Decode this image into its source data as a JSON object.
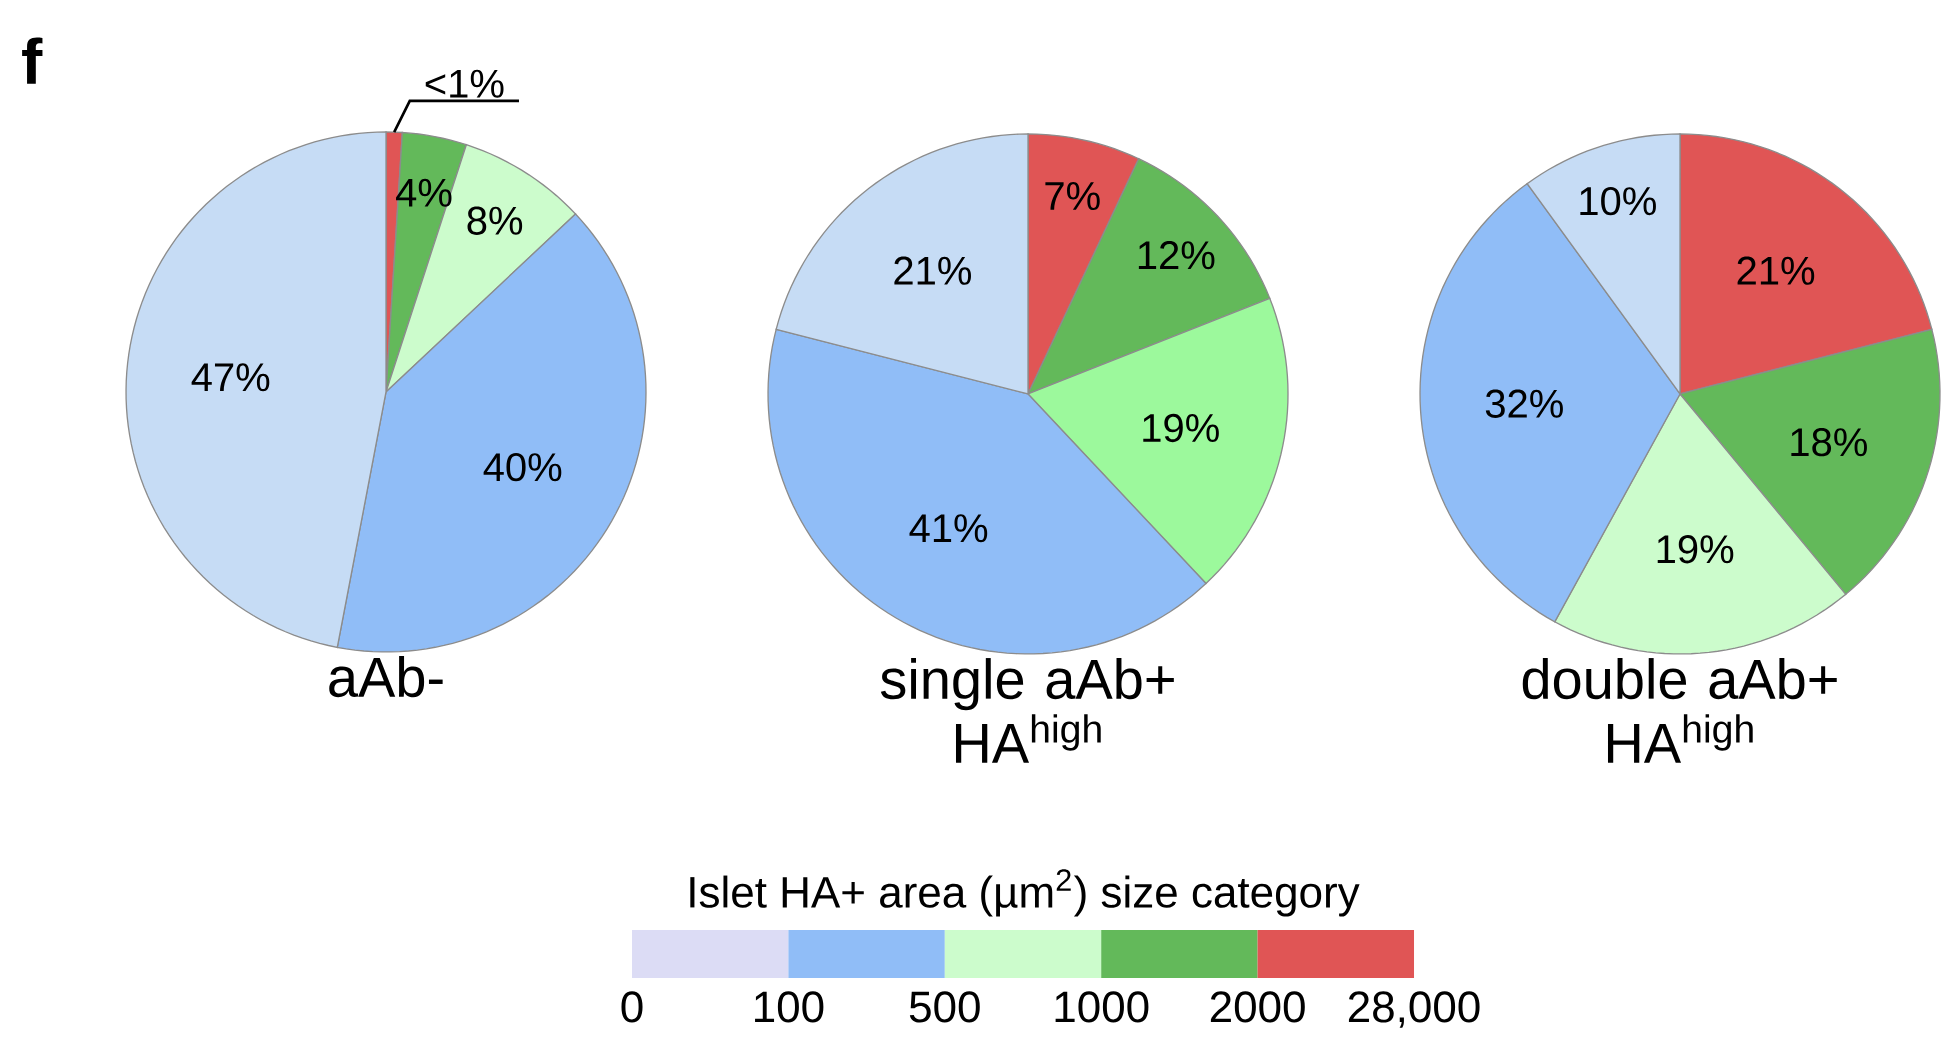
{
  "chart_data": [
    {
      "type": "pie",
      "title": "aAb-",
      "annotations": [
        "f"
      ],
      "categories": [
        null,
        null,
        null,
        null,
        null
      ],
      "values": [
        1,
        4,
        8,
        40,
        47
      ],
      "value_labels": [
        "<1%",
        "4%",
        "8%",
        "40%",
        "47%"
      ],
      "colors": [
        "#e05555",
        "#63b95a",
        "#ccfccc",
        "#90bdf7",
        "#c6dcf5"
      ]
    },
    {
      "type": "pie",
      "title": "single aAb+ HA$^{high}$",
      "categories": [
        null,
        null,
        null,
        null,
        null
      ],
      "values": [
        7,
        12,
        19,
        41,
        21
      ],
      "value_labels": [
        "7%",
        "12%",
        "19%",
        "41%",
        "21%"
      ],
      "colors": [
        "#e05555",
        "#63b95a",
        "#9cf99c",
        "#90bdf7",
        "#c6dcf5"
      ]
    },
    {
      "type": "pie",
      "title": "double aAb+ HA$^{high}$",
      "categories": [
        null,
        null,
        null,
        null,
        null
      ],
      "values": [
        21,
        18,
        19,
        32,
        10
      ],
      "value_labels": [
        "21%",
        "18%",
        "19%",
        "32%",
        "10%"
      ],
      "colors": [
        "#e05555",
        "#63b95a",
        "#ccfccc",
        "#90bdf7",
        "#c6dcf5"
      ]
    },
    {
      "type": "other",
      "legend_title": "Islet HA+ area (µm$^{2}$) size category",
      "categories": [
        "0",
        "100",
        "500",
        "1000",
        "2000",
        "28,000"
      ],
      "colors": [
        "#dcdcf5",
        "#90bdf7",
        "#ccfccc",
        "#63b95a",
        "#e05555"
      ]
    }
  ]
}
